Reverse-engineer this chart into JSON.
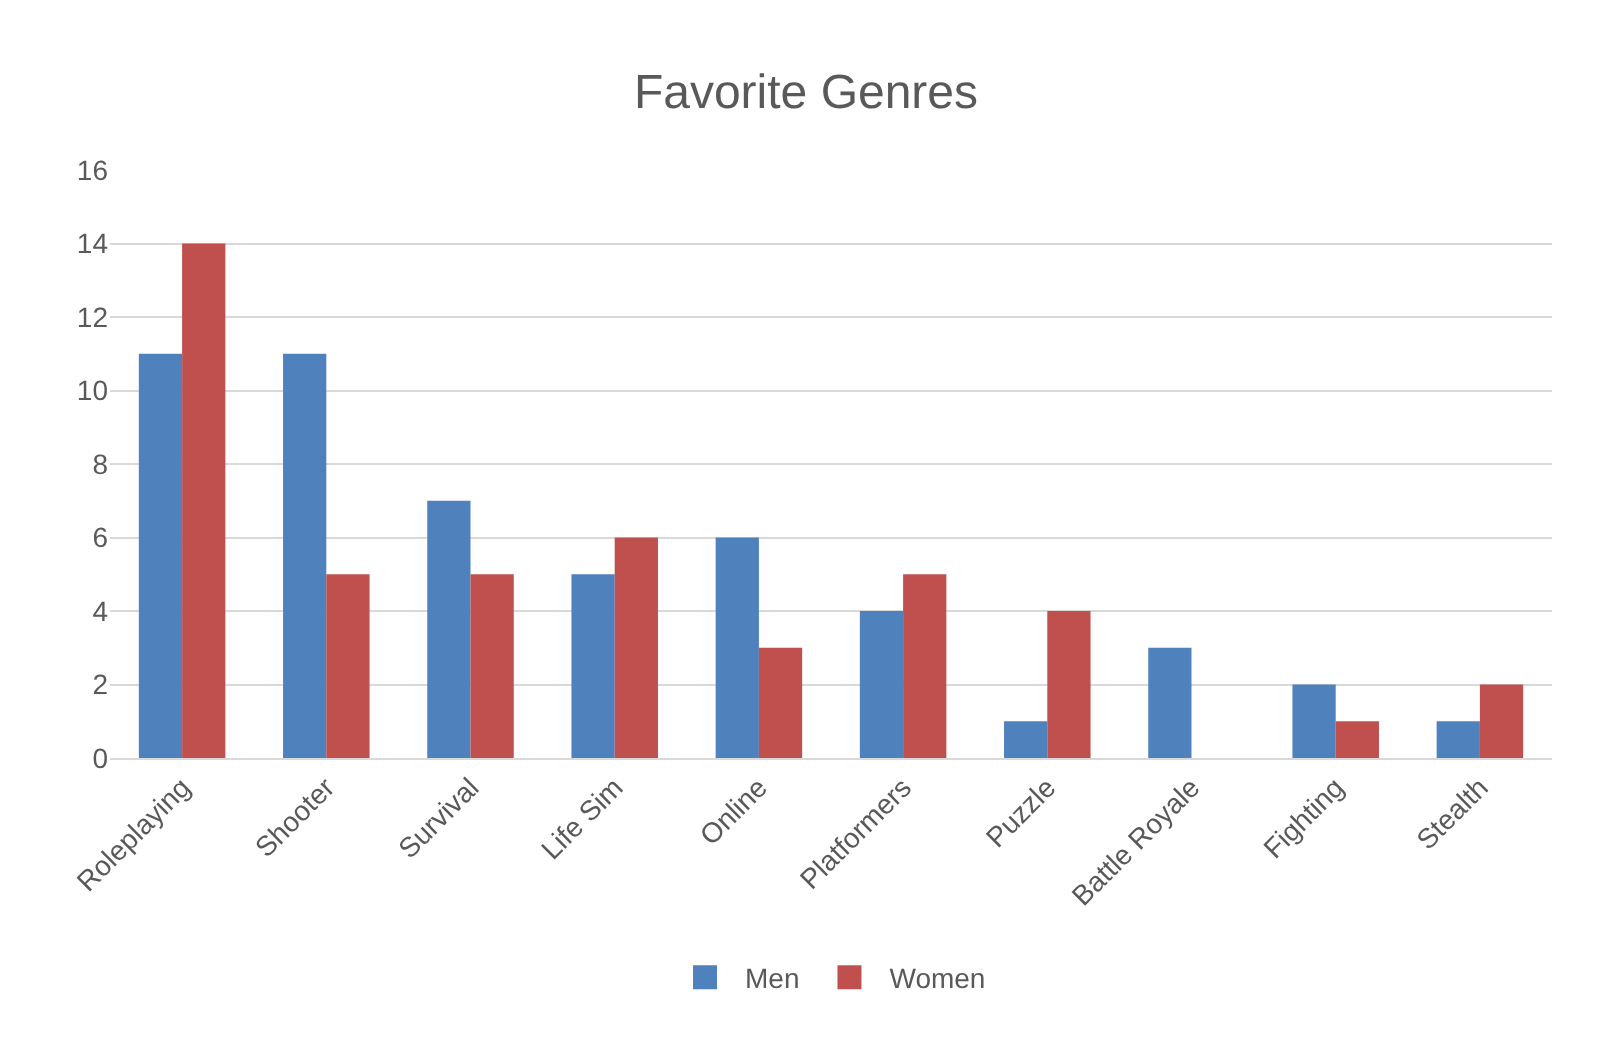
{
  "chart_data": {
    "type": "bar",
    "title": "Favorite Genres",
    "categories": [
      "Roleplaying",
      "Shooter",
      "Survival",
      "Life Sim",
      "Online",
      "Platformers",
      "Puzzle",
      "Battle Royale",
      "Fighting",
      "Stealth"
    ],
    "series": [
      {
        "name": "Men",
        "color": "#4f81bd",
        "values": [
          11,
          11,
          7,
          5,
          6,
          4,
          1,
          3,
          2,
          1
        ]
      },
      {
        "name": "Women",
        "color": "#c0504d",
        "values": [
          14,
          5,
          5,
          6,
          3,
          5,
          4,
          0,
          1,
          2
        ]
      }
    ],
    "ylim": [
      0,
      16
    ],
    "yticks": [
      0,
      2,
      4,
      6,
      8,
      10,
      12,
      14,
      16
    ],
    "grid": "y",
    "legend": "bottom"
  }
}
